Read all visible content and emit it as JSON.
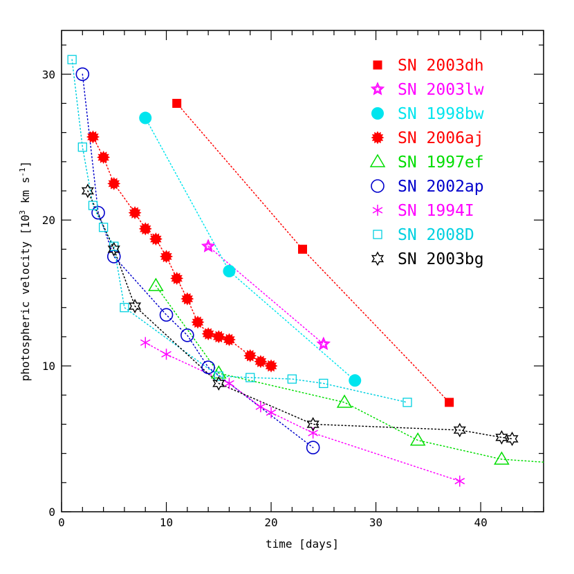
{
  "chart_data": {
    "type": "scatter",
    "title": "",
    "xlabel": "time [days]",
    "ylabel": "photospheric velocity [10",
    "ylabel_sup": "3",
    "ylabel_unit": " km s",
    "ylabel_unit_sup": "-1",
    "ylabel_close": "]",
    "xlim": [
      0,
      46
    ],
    "ylim": [
      0,
      33
    ],
    "x_ticks": [
      0,
      10,
      20,
      30,
      40
    ],
    "y_ticks": [
      0,
      10,
      20,
      30
    ],
    "grid": false,
    "legend_position": "top-right",
    "series": [
      {
        "name": "SN 2003dh",
        "color": "#ff0000",
        "marker": "filled-square",
        "x": [
          11,
          23,
          37
        ],
        "y": [
          28.0,
          18.0,
          7.5
        ]
      },
      {
        "name": "SN 2003lw",
        "color": "#ff00ff",
        "marker": "star-double",
        "x": [
          14,
          25
        ],
        "y": [
          18.2,
          11.5
        ]
      },
      {
        "name": "SN 1998bw",
        "color": "#00e5ee",
        "marker": "filled-circle",
        "x": [
          8,
          16,
          28
        ],
        "y": [
          27.0,
          16.5,
          9.0
        ]
      },
      {
        "name": "SN 2006aj",
        "color": "#ff0000",
        "marker": "filled-burst",
        "x": [
          3,
          4,
          5,
          7,
          8,
          9,
          10,
          11,
          12,
          13,
          14,
          15,
          16,
          18,
          19,
          20
        ],
        "y": [
          25.7,
          24.3,
          22.5,
          20.5,
          19.4,
          18.7,
          17.5,
          16.0,
          14.6,
          13.0,
          12.2,
          12.0,
          11.8,
          10.7,
          10.3,
          10.0
        ]
      },
      {
        "name": "SN 1997ef",
        "color": "#00dd00",
        "marker": "open-triangle",
        "x": [
          9,
          15,
          27,
          34,
          42,
          46
        ],
        "y": [
          15.5,
          9.5,
          7.5,
          4.9,
          3.6,
          3.4
        ]
      },
      {
        "name": "SN 2002ap",
        "color": "#0000cc",
        "marker": "open-circle",
        "x": [
          2,
          3.5,
          5,
          10,
          12,
          14,
          24
        ],
        "y": [
          30.0,
          20.5,
          17.5,
          13.5,
          12.1,
          9.9,
          4.4
        ]
      },
      {
        "name": "SN 1994I",
        "color": "#ff00ff",
        "marker": "asterisk",
        "x": [
          8,
          10,
          16,
          19,
          20,
          24,
          38
        ],
        "y": [
          11.6,
          10.8,
          8.8,
          7.2,
          6.8,
          5.4,
          2.1
        ]
      },
      {
        "name": "SN 2008D",
        "color": "#00d0e0",
        "marker": "open-square",
        "x": [
          1,
          2,
          3,
          4,
          5,
          6,
          15,
          18,
          22,
          25,
          33
        ],
        "y": [
          31.0,
          25.0,
          21.0,
          19.5,
          18.2,
          14.0,
          9.3,
          9.2,
          9.1,
          8.8,
          7.5
        ]
      },
      {
        "name": "SN 2003bg",
        "color": "#000000",
        "marker": "open-star",
        "x": [
          2.5,
          5,
          7,
          15,
          24,
          38,
          42,
          43
        ],
        "y": [
          22.0,
          18.0,
          14.1,
          8.8,
          6.0,
          5.6,
          5.1,
          5.0
        ]
      }
    ]
  }
}
